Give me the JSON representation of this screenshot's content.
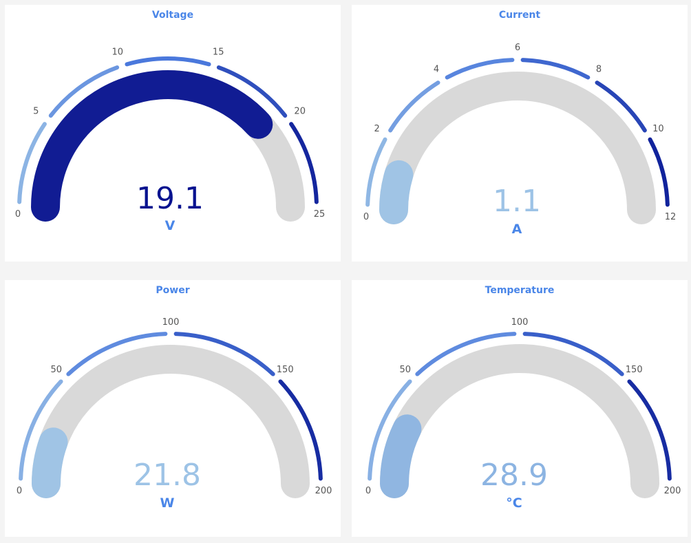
{
  "gauges": [
    {
      "title": "Voltage",
      "value": 19.1,
      "value_label": "19.1",
      "unit": "V",
      "min": 0,
      "max": 25,
      "ticks": [
        "0",
        "5",
        "10",
        "15",
        "20",
        "25"
      ],
      "value_color": "#06128f",
      "bar_color": "#06128f"
    },
    {
      "title": "Current",
      "value": 1.1,
      "value_label": "1.1",
      "unit": "A",
      "min": 0,
      "max": 12,
      "ticks": [
        "0",
        "2",
        "4",
        "6",
        "8",
        "10",
        "12"
      ],
      "value_color": "#9dc3e6",
      "bar_color": "#9dc3e6"
    },
    {
      "title": "Power",
      "value": 21.8,
      "value_label": "21.8",
      "unit": "W",
      "min": 0,
      "max": 200,
      "ticks": [
        "0",
        "50",
        "100",
        "150",
        "200"
      ],
      "value_color": "#9dc3e6",
      "bar_color": "#9dc3e6"
    },
    {
      "title": "Temperature",
      "value": 28.9,
      "value_label": "28.9",
      "unit": "°C",
      "min": 0,
      "max": 200,
      "ticks": [
        "0",
        "50",
        "100",
        "150",
        "200"
      ],
      "value_color": "#8cb4e2",
      "bar_color": "#8cb4e2"
    }
  ],
  "colors": {
    "track": "#d9d9d9",
    "title": "#4a86e8",
    "scale_start": "#9dc3e6",
    "scale_mid": "#4a78dc",
    "scale_end": "#06128f"
  }
}
